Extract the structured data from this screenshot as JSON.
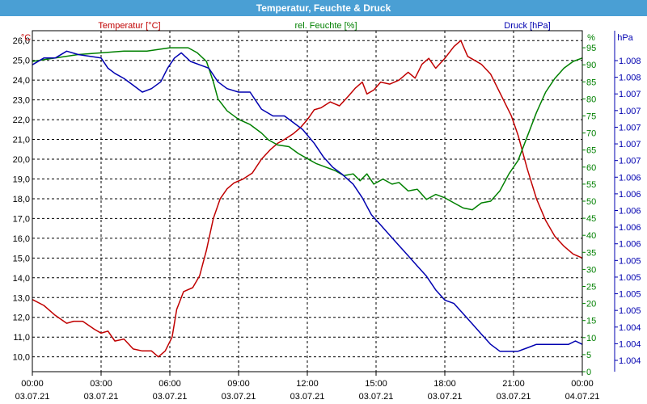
{
  "window": {
    "title": "Temperatur, Feuchte & Druck"
  },
  "colors": {
    "temperature": "#c00000",
    "humidity": "#008000",
    "pressure": "#0000b0",
    "title_bg": "#4a9fd4",
    "grid": "#000000"
  },
  "chart_data": {
    "type": "line",
    "title": "Temperatur, Feuchte & Druck",
    "grid": true,
    "x_ticks": [
      {
        "time": "00:00",
        "date": "03.07.21"
      },
      {
        "time": "03:00",
        "date": "03.07.21"
      },
      {
        "time": "06:00",
        "date": "03.07.21"
      },
      {
        "time": "09:00",
        "date": "03.07.21"
      },
      {
        "time": "12:00",
        "date": "03.07.21"
      },
      {
        "time": "15:00",
        "date": "03.07.21"
      },
      {
        "time": "18:00",
        "date": "03.07.21"
      },
      {
        "time": "21:00",
        "date": "03.07.21"
      },
      {
        "time": "00:00",
        "date": "04.07.21"
      }
    ],
    "x_range_hours": [
      0,
      24
    ],
    "axes": {
      "temperature": {
        "label": "Temperatur [°C]",
        "unit": "°C",
        "side": "left",
        "ylim": [
          9.25,
          26.5
        ],
        "ticks": [
          "26,0",
          "25,0",
          "24,0",
          "23,0",
          "22,0",
          "21,0",
          "20,0",
          "19,0",
          "18,0",
          "17,0",
          "16,0",
          "15,0",
          "14,0",
          "13,0",
          "12,0",
          "11,0",
          "10,0"
        ]
      },
      "humidity": {
        "label": "rel. Feuchte [%]",
        "unit": "%",
        "side": "right",
        "ylim": [
          0,
          100
        ],
        "ticks": [
          "95",
          "90",
          "85",
          "80",
          "75",
          "70",
          "65",
          "60",
          "55",
          "50",
          "45",
          "40",
          "35",
          "30",
          "25",
          "20",
          "15",
          "10",
          "5",
          "0"
        ]
      },
      "pressure": {
        "label": "Druck [hPa]",
        "unit": "hPa",
        "side": "right-outer",
        "ticks": [
          "1.008",
          "1.008",
          "1.007",
          "1.007",
          "1.007",
          "1.007",
          "1.007",
          "1.006",
          "1.006",
          "1.006",
          "1.006",
          "1.006",
          "1.005",
          "1.005",
          "1.005",
          "1.005",
          "1.004",
          "1.004",
          "1.004"
        ]
      }
    },
    "series": [
      {
        "name": "Temperatur [°C]",
        "axis": "temperature",
        "color": "#c00000",
        "points": [
          [
            0,
            12.9
          ],
          [
            0.5,
            12.6
          ],
          [
            1,
            12.1
          ],
          [
            1.5,
            11.7
          ],
          [
            1.8,
            11.8
          ],
          [
            2.2,
            11.8
          ],
          [
            2.7,
            11.4
          ],
          [
            3,
            11.2
          ],
          [
            3.3,
            11.3
          ],
          [
            3.6,
            10.8
          ],
          [
            4,
            10.9
          ],
          [
            4.4,
            10.4
          ],
          [
            4.8,
            10.3
          ],
          [
            5.2,
            10.3
          ],
          [
            5.5,
            10.0
          ],
          [
            5.8,
            10.3
          ],
          [
            6.1,
            11.0
          ],
          [
            6.3,
            12.4
          ],
          [
            6.6,
            13.3
          ],
          [
            7,
            13.5
          ],
          [
            7.3,
            14.1
          ],
          [
            7.6,
            15.4
          ],
          [
            7.9,
            17.0
          ],
          [
            8.2,
            18.0
          ],
          [
            8.5,
            18.5
          ],
          [
            8.8,
            18.8
          ],
          [
            9.2,
            19.0
          ],
          [
            9.6,
            19.3
          ],
          [
            10,
            20.0
          ],
          [
            10.4,
            20.5
          ],
          [
            10.7,
            20.8
          ],
          [
            11,
            21.0
          ],
          [
            11.4,
            21.3
          ],
          [
            11.7,
            21.6
          ],
          [
            12,
            22.0
          ],
          [
            12.3,
            22.5
          ],
          [
            12.6,
            22.6
          ],
          [
            13,
            22.9
          ],
          [
            13.4,
            22.7
          ],
          [
            13.8,
            23.2
          ],
          [
            14.1,
            23.6
          ],
          [
            14.4,
            23.9
          ],
          [
            14.6,
            23.3
          ],
          [
            14.9,
            23.5
          ],
          [
            15.2,
            23.9
          ],
          [
            15.6,
            23.8
          ],
          [
            16,
            24.0
          ],
          [
            16.4,
            24.4
          ],
          [
            16.7,
            24.1
          ],
          [
            17,
            24.8
          ],
          [
            17.3,
            25.1
          ],
          [
            17.6,
            24.6
          ],
          [
            18,
            25.1
          ],
          [
            18.4,
            25.7
          ],
          [
            18.7,
            26.0
          ],
          [
            19,
            25.2
          ],
          [
            19.3,
            25.0
          ],
          [
            19.6,
            24.8
          ],
          [
            20,
            24.3
          ],
          [
            20.3,
            23.6
          ],
          [
            20.6,
            22.9
          ],
          [
            20.9,
            22.2
          ],
          [
            21.2,
            21.2
          ],
          [
            21.6,
            19.5
          ],
          [
            22,
            18.0
          ],
          [
            22.4,
            16.9
          ],
          [
            22.8,
            16.1
          ],
          [
            23.2,
            15.6
          ],
          [
            23.6,
            15.2
          ],
          [
            24,
            15.0
          ]
        ]
      },
      {
        "name": "rel. Feuchte [%]",
        "axis": "humidity",
        "color": "#008000",
        "points": [
          [
            0,
            91
          ],
          [
            1,
            92
          ],
          [
            2,
            93
          ],
          [
            3,
            93.5
          ],
          [
            4,
            94
          ],
          [
            5,
            94
          ],
          [
            6,
            95
          ],
          [
            6.8,
            95
          ],
          [
            7.2,
            93.5
          ],
          [
            7.6,
            91
          ],
          [
            7.9,
            85
          ],
          [
            8.1,
            80
          ],
          [
            8.5,
            76.5
          ],
          [
            9,
            74
          ],
          [
            9.5,
            72.5
          ],
          [
            10,
            70
          ],
          [
            10.3,
            68
          ],
          [
            10.7,
            66.5
          ],
          [
            11.2,
            66
          ],
          [
            11.6,
            64
          ],
          [
            12,
            62.5
          ],
          [
            12.4,
            61
          ],
          [
            12.8,
            60
          ],
          [
            13.2,
            59
          ],
          [
            13.6,
            57.5
          ],
          [
            14,
            58
          ],
          [
            14.3,
            56
          ],
          [
            14.6,
            58
          ],
          [
            14.9,
            55
          ],
          [
            15.3,
            56.5
          ],
          [
            15.7,
            55
          ],
          [
            16,
            55.5
          ],
          [
            16.4,
            53
          ],
          [
            16.8,
            53.5
          ],
          [
            17.2,
            50.5
          ],
          [
            17.6,
            52
          ],
          [
            18,
            51
          ],
          [
            18.4,
            49.5
          ],
          [
            18.8,
            48
          ],
          [
            19.2,
            47.5
          ],
          [
            19.6,
            49.5
          ],
          [
            20,
            50
          ],
          [
            20.4,
            53
          ],
          [
            20.8,
            58
          ],
          [
            21.2,
            62
          ],
          [
            21.6,
            69
          ],
          [
            22,
            76
          ],
          [
            22.4,
            82
          ],
          [
            22.8,
            86
          ],
          [
            23.2,
            89
          ],
          [
            23.6,
            91
          ],
          [
            24,
            92
          ]
        ]
      },
      {
        "name": "Druck [hPa]",
        "axis": "pressure",
        "color": "#0000b0",
        "plotted_as_humidity_units": true,
        "points": [
          [
            0,
            90
          ],
          [
            0.5,
            92
          ],
          [
            1,
            92
          ],
          [
            1.5,
            94
          ],
          [
            2,
            93
          ],
          [
            2.5,
            92.5
          ],
          [
            3,
            92
          ],
          [
            3.3,
            89
          ],
          [
            3.6,
            87.5
          ],
          [
            4,
            86
          ],
          [
            4.4,
            84
          ],
          [
            4.8,
            82
          ],
          [
            5.2,
            83
          ],
          [
            5.6,
            85
          ],
          [
            5.9,
            89
          ],
          [
            6.2,
            92
          ],
          [
            6.5,
            93.5
          ],
          [
            6.9,
            91
          ],
          [
            7.3,
            90
          ],
          [
            7.7,
            89
          ],
          [
            8.1,
            85
          ],
          [
            8.5,
            83
          ],
          [
            9,
            82
          ],
          [
            9.5,
            82
          ],
          [
            10,
            77
          ],
          [
            10.5,
            75
          ],
          [
            11,
            75
          ],
          [
            11.4,
            73
          ],
          [
            11.8,
            71
          ],
          [
            12.3,
            67
          ],
          [
            12.7,
            63
          ],
          [
            13.1,
            60
          ],
          [
            13.5,
            58
          ],
          [
            14,
            55
          ],
          [
            14.4,
            51
          ],
          [
            14.8,
            46
          ],
          [
            15.2,
            43
          ],
          [
            15.6,
            40
          ],
          [
            16,
            37
          ],
          [
            16.4,
            34
          ],
          [
            16.8,
            31
          ],
          [
            17.2,
            28
          ],
          [
            17.6,
            24
          ],
          [
            18,
            21
          ],
          [
            18.4,
            20
          ],
          [
            18.8,
            17
          ],
          [
            19.2,
            14
          ],
          [
            19.6,
            11
          ],
          [
            20,
            8
          ],
          [
            20.4,
            6
          ],
          [
            20.8,
            6
          ],
          [
            21.2,
            6
          ],
          [
            21.6,
            7
          ],
          [
            22,
            8
          ],
          [
            22.5,
            8
          ],
          [
            23,
            8
          ],
          [
            23.4,
            8
          ],
          [
            23.7,
            9
          ],
          [
            24,
            8
          ]
        ]
      }
    ]
  }
}
